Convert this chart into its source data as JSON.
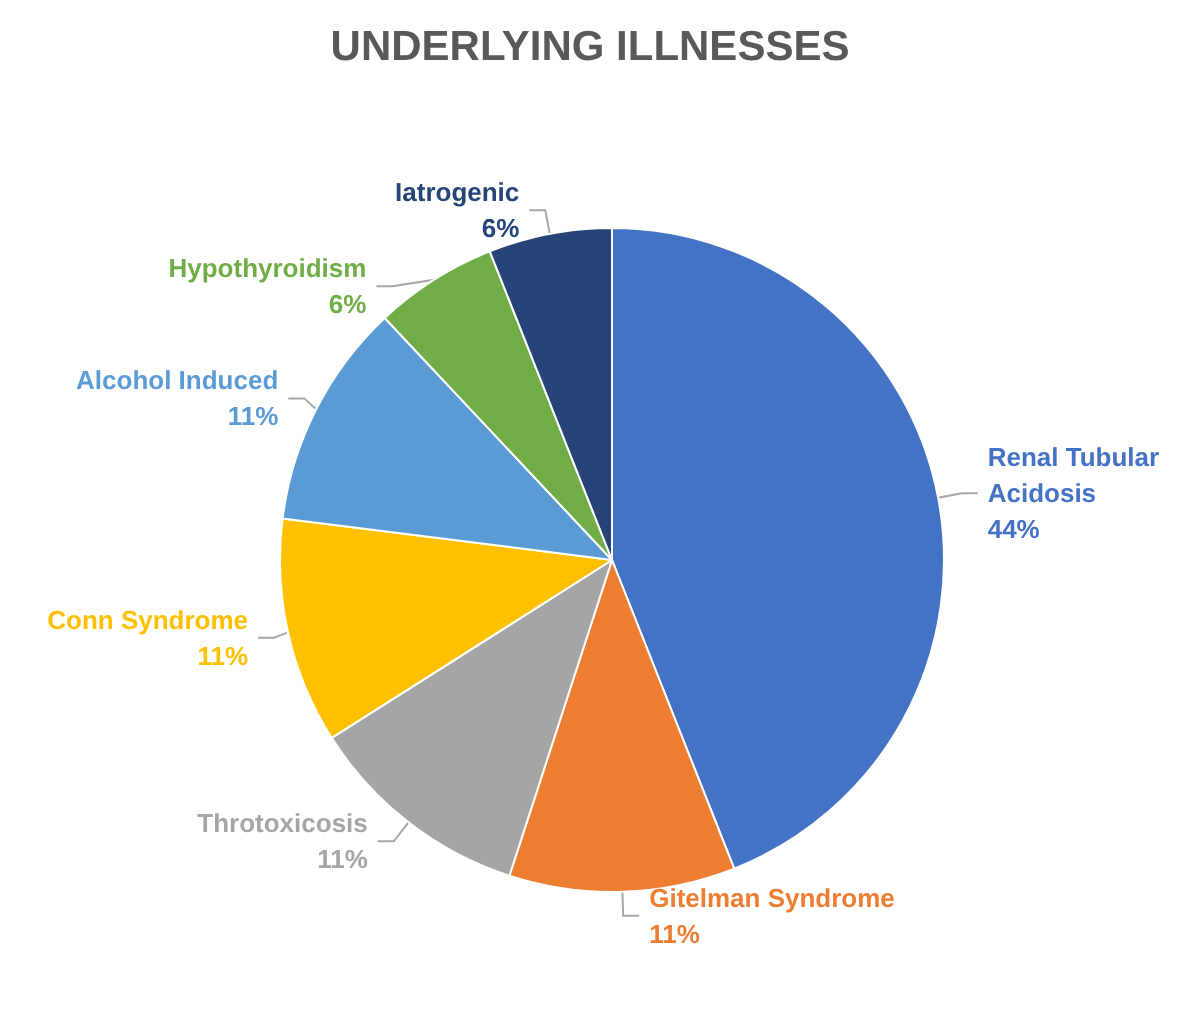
{
  "chart_data": {
    "type": "pie",
    "title": "UNDERLYING ILLNESSES",
    "categories": [
      "Renal Tubular Acidosis",
      "Gitelman Syndrome",
      "Throtoxicosis",
      "Conn Syndrome",
      "Alcohol Induced",
      "Hypothyroidism",
      "Iatrogenic"
    ],
    "values": [
      44,
      11,
      11,
      11,
      11,
      6,
      6
    ],
    "value_labels": [
      "44%",
      "11%",
      "11%",
      "11%",
      "11%",
      "6%",
      "6%"
    ],
    "colors": [
      "#4472c4",
      "#ed7d31",
      "#a5a5a5",
      "#ffc000",
      "#5b9bd5",
      "#70ad47",
      "#264478"
    ],
    "legend": false
  }
}
